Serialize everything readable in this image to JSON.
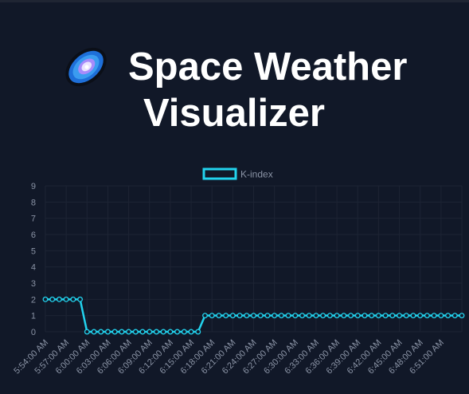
{
  "header": {
    "title_line1": "Space Weather",
    "title_line2": "Visualizer",
    "logo_icon": "galaxy-icon"
  },
  "footer": {
    "partial_label": ""
  },
  "chart_data": {
    "type": "line",
    "title": "",
    "xlabel": "",
    "ylabel": "",
    "ylim": [
      0,
      9
    ],
    "yticks": [
      0,
      1,
      2,
      3,
      4,
      5,
      6,
      7,
      8,
      9
    ],
    "grid": true,
    "legend_position": "top-center",
    "colors": {
      "line": "#22d3ee",
      "grid": "#1d2434",
      "tick": "#8a93a5",
      "background": "#111828"
    },
    "xtick_labels": [
      "5:54:00 AM",
      "5:57:00 AM",
      "6:00:00 AM",
      "6:03:00 AM",
      "6:06:00 AM",
      "6:09:00 AM",
      "6:12:00 AM",
      "6:15:00 AM",
      "6:18:00 AM",
      "6:21:00 AM",
      "6:24:00 AM",
      "6:27:00 AM",
      "6:30:00 AM",
      "6:33:00 AM",
      "6:36:00 AM",
      "6:39:00 AM",
      "6:42:00 AM",
      "6:45:00 AM",
      "6:48:00 AM",
      "6:51:00 AM"
    ],
    "series": [
      {
        "name": "K-index",
        "values": [
          2,
          2,
          2,
          2,
          2,
          2,
          0,
          0,
          0,
          0,
          0,
          0,
          0,
          0,
          0,
          0,
          0,
          0,
          0,
          0,
          0,
          0,
          0,
          1,
          1,
          1,
          1,
          1,
          1,
          1,
          1,
          1,
          1,
          1,
          1,
          1,
          1,
          1,
          1,
          1,
          1,
          1,
          1,
          1,
          1,
          1,
          1,
          1,
          1,
          1,
          1,
          1,
          1,
          1,
          1,
          1,
          1,
          1,
          1,
          1,
          1
        ]
      }
    ]
  }
}
